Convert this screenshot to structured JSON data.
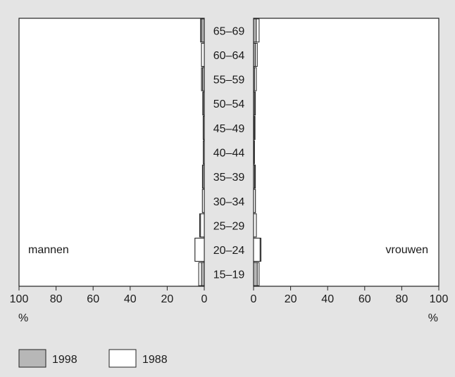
{
  "chart_data": {
    "type": "bar",
    "orientation": "horizontal",
    "layout": "population-pyramid",
    "categories": [
      "15–19",
      "20–24",
      "25–29",
      "30–34",
      "35–39",
      "40–44",
      "45–49",
      "50–54",
      "55–59",
      "60–64",
      "65–69"
    ],
    "panels": [
      {
        "key": "male",
        "label": "mannen",
        "series": [
          {
            "name": "1998",
            "color": "#b7b7b7",
            "values": [
              1.5,
              5.0,
              2.5,
              1.0,
              0.8,
              0.5,
              0.6,
              0.6,
              1.0,
              1.5,
              1.5
            ]
          },
          {
            "name": "1988",
            "color": "#ffffff",
            "values": [
              3.0,
              5.0,
              2.0,
              1.0,
              1.0,
              0.5,
              0.5,
              0.8,
              1.5,
              1.5,
              2.0
            ]
          }
        ]
      },
      {
        "key": "female",
        "label": "vrouwen",
        "series": [
          {
            "name": "1998",
            "color": "#b7b7b7",
            "values": [
              2.0,
              4.0,
              1.5,
              1.0,
              0.6,
              0.3,
              0.4,
              0.5,
              0.5,
              1.0,
              1.5
            ]
          },
          {
            "name": "1988",
            "color": "#ffffff",
            "values": [
              3.0,
              3.5,
              1.5,
              1.0,
              1.0,
              0.5,
              0.8,
              1.0,
              1.5,
              2.0,
              3.0
            ]
          }
        ]
      }
    ],
    "x_ticks": [
      "100",
      "80",
      "60",
      "40",
      "20",
      "0"
    ],
    "x_ticks_right": [
      "0",
      "20",
      "40",
      "60",
      "80",
      "100"
    ],
    "xlim": [
      0,
      100
    ],
    "x_unit": "%",
    "legend": {
      "placement": "bottom-left",
      "items": [
        "1998",
        "1988"
      ]
    },
    "grid": false
  }
}
